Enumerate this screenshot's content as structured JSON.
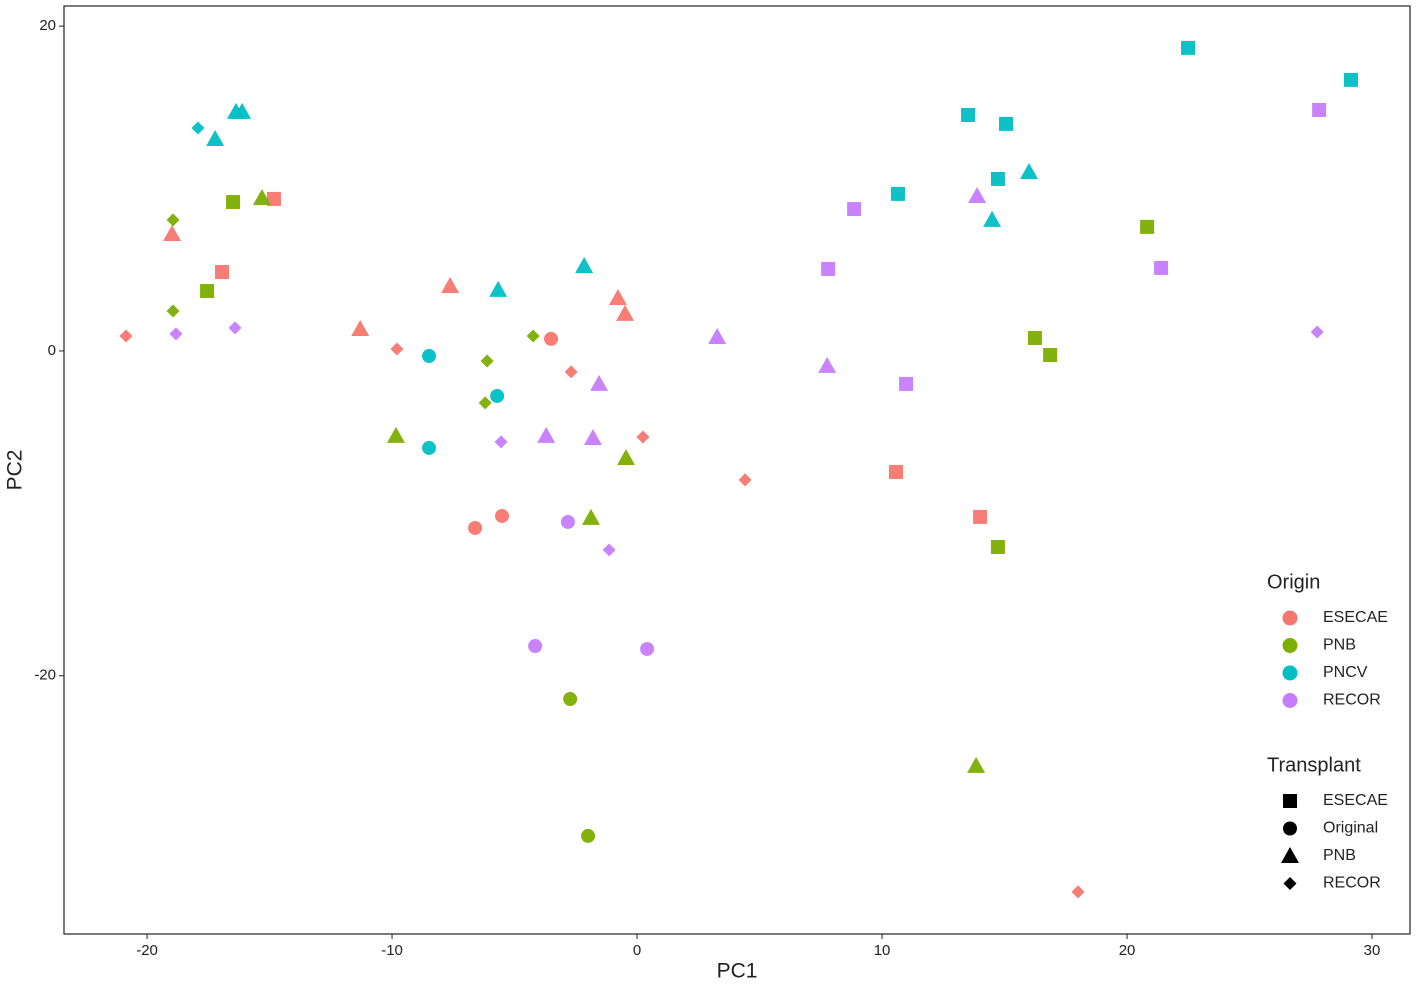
{
  "chart_data": {
    "type": "scatter",
    "x_label": "PC1",
    "y_label": "PC2",
    "xlim": [
      -23.39,
      31.55
    ],
    "ylim": [
      -35.9,
      21.24
    ],
    "xticks": [
      -20,
      -10,
      0,
      10,
      20,
      30
    ],
    "yticks": [
      -20,
      0,
      20
    ],
    "grid": false,
    "legends": [
      {
        "title": "Origin",
        "entries": [
          {
            "name": "ESECAE",
            "color": "#F8766D"
          },
          {
            "name": "PNB",
            "color": "#7CAE00"
          },
          {
            "name": "PNCV",
            "color": "#00BFC4"
          },
          {
            "name": "RECOR",
            "color": "#C77CFF"
          }
        ]
      },
      {
        "title": "Transplant",
        "entries": [
          {
            "name": "ESECAE",
            "shape": "square"
          },
          {
            "name": "Original",
            "shape": "circle"
          },
          {
            "name": "PNB",
            "shape": "triangle"
          },
          {
            "name": "RECOR",
            "shape": "diamond"
          }
        ]
      }
    ],
    "series": [
      {
        "origin": "ESECAE",
        "transplant": "ESECAE",
        "x": [
          -14.82,
          -16.94,
          10.57,
          14.0
        ],
        "y": [
          9.36,
          4.86,
          -7.45,
          -10.22
        ]
      },
      {
        "origin": "ESECAE",
        "transplant": "Original",
        "x": [
          -3.51,
          -6.61,
          -5.51
        ],
        "y": [
          0.74,
          -10.9,
          -10.16
        ]
      },
      {
        "origin": "ESECAE",
        "transplant": "PNB",
        "x": [
          -18.98,
          -7.63,
          -11.3,
          -0.78,
          -0.49
        ],
        "y": [
          7.2,
          4.0,
          1.35,
          3.26,
          2.28
        ]
      },
      {
        "origin": "ESECAE",
        "transplant": "RECOR",
        "x": [
          -20.86,
          -9.8,
          -2.69,
          0.24,
          4.41,
          18.0
        ],
        "y": [
          0.92,
          0.12,
          -1.29,
          -5.3,
          -7.94,
          -33.31
        ]
      },
      {
        "origin": "PNB",
        "transplant": "ESECAE",
        "x": [
          -16.49,
          -17.55,
          20.82,
          16.24,
          16.86,
          14.73
        ],
        "y": [
          9.17,
          3.69,
          7.64,
          0.8,
          -0.25,
          -12.07
        ]
      },
      {
        "origin": "PNB",
        "transplant": "Original",
        "x": [
          -2.73,
          -2.0
        ],
        "y": [
          -21.43,
          -29.86
        ]
      },
      {
        "origin": "PNB",
        "transplant": "PNB",
        "x": [
          -15.31,
          -9.84,
          -0.45,
          -1.88,
          13.84
        ],
        "y": [
          9.42,
          -5.23,
          -6.59,
          -10.28,
          -25.55
        ]
      },
      {
        "origin": "PNB",
        "transplant": "RECOR",
        "x": [
          -18.94,
          -18.94,
          -6.12,
          -6.2,
          -4.24
        ],
        "y": [
          8.07,
          2.46,
          -0.62,
          -3.2,
          0.92
        ]
      },
      {
        "origin": "PNCV",
        "transplant": "ESECAE",
        "x": [
          13.51,
          15.06,
          10.65,
          14.73,
          22.49,
          29.14
        ],
        "y": [
          14.53,
          13.98,
          9.67,
          10.59,
          18.66,
          16.69
        ]
      },
      {
        "origin": "PNCV",
        "transplant": "Original",
        "x": [
          -8.49,
          -8.49,
          -5.71
        ],
        "y": [
          -0.31,
          -5.97,
          -2.77
        ]
      },
      {
        "origin": "PNCV",
        "transplant": "PNB",
        "x": [
          -16.37,
          -16.12,
          -17.22,
          -2.16,
          -5.67,
          16.0,
          14.49
        ],
        "y": [
          14.72,
          14.72,
          13.05,
          5.23,
          3.76,
          11.02,
          8.07
        ]
      },
      {
        "origin": "PNCV",
        "transplant": "RECOR",
        "x": [
          -17.92
        ],
        "y": [
          13.73
        ]
      },
      {
        "origin": "RECOR",
        "transplant": "ESECAE",
        "x": [
          8.86,
          7.8,
          21.39,
          10.98,
          27.84
        ],
        "y": [
          8.74,
          5.05,
          5.11,
          -2.03,
          14.84
        ]
      },
      {
        "origin": "RECOR",
        "transplant": "Original",
        "x": [
          -2.82,
          -4.16,
          0.41
        ],
        "y": [
          -10.53,
          -18.17,
          -18.35
        ]
      },
      {
        "origin": "RECOR",
        "transplant": "PNB",
        "x": [
          13.88,
          3.27,
          7.76,
          -1.55,
          -3.71,
          -1.8
        ],
        "y": [
          9.54,
          0.86,
          -0.92,
          -2.03,
          -5.23,
          -5.36
        ]
      },
      {
        "origin": "RECOR",
        "transplant": "RECOR",
        "x": [
          -18.82,
          -16.41,
          -5.55,
          -1.14,
          27.76
        ],
        "y": [
          1.05,
          1.42,
          -5.6,
          -12.25,
          1.17
        ]
      }
    ]
  }
}
